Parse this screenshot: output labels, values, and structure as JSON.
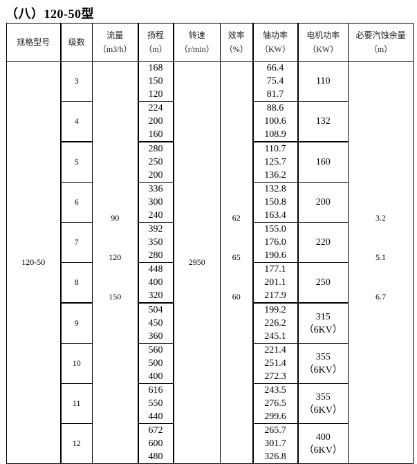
{
  "title": "（八）120-50型",
  "headers": [
    {
      "label": "规格型号",
      "unit": ""
    },
    {
      "label": "级数",
      "unit": ""
    },
    {
      "label": "流量",
      "unit": "（m3/h）"
    },
    {
      "label": "扬程",
      "unit": "（m）"
    },
    {
      "label": "转速",
      "unit": "（r/min）"
    },
    {
      "label": "效率",
      "unit": "（%）"
    },
    {
      "label": "轴功率",
      "unit": "（KW）"
    },
    {
      "label": "电机功率",
      "unit": "（KW）"
    },
    {
      "label": "必要汽蚀余量",
      "unit": "（m）"
    }
  ],
  "model": "120-50",
  "flow": [
    "90",
    "120",
    "150"
  ],
  "speed": "2950",
  "efficiency": [
    "62",
    "65",
    "60"
  ],
  "npsh": [
    "3.2",
    "5.1",
    "6.7"
  ],
  "rows": [
    {
      "stage": "3",
      "head": [
        "168",
        "150",
        "120"
      ],
      "shaft": [
        "66.4",
        "75.4",
        "81.7"
      ],
      "motor": "110",
      "motor_note": ""
    },
    {
      "stage": "4",
      "head": [
        "224",
        "200",
        "160"
      ],
      "shaft": [
        "88.6",
        "100.6",
        "108.9"
      ],
      "motor": "132",
      "motor_note": ""
    },
    {
      "stage": "5",
      "head": [
        "280",
        "250",
        "200"
      ],
      "shaft": [
        "110.7",
        "125.7",
        "136.2"
      ],
      "motor": "160",
      "motor_note": ""
    },
    {
      "stage": "6",
      "head": [
        "336",
        "300",
        "240"
      ],
      "shaft": [
        "132.8",
        "150.8",
        "163.4"
      ],
      "motor": "200",
      "motor_note": ""
    },
    {
      "stage": "7",
      "head": [
        "392",
        "350",
        "280"
      ],
      "shaft": [
        "155.0",
        "176.0",
        "190.6"
      ],
      "motor": "220",
      "motor_note": ""
    },
    {
      "stage": "8",
      "head": [
        "448",
        "400",
        "320"
      ],
      "shaft": [
        "177.1",
        "201.1",
        "217.9"
      ],
      "motor": "250",
      "motor_note": ""
    },
    {
      "stage": "9",
      "head": [
        "504",
        "450",
        "360"
      ],
      "shaft": [
        "199.2",
        "226.2",
        "245.1"
      ],
      "motor": "315",
      "motor_note": "（6KV）"
    },
    {
      "stage": "10",
      "head": [
        "560",
        "500",
        "400"
      ],
      "shaft": [
        "221.4",
        "251.4",
        "272.3"
      ],
      "motor": "355",
      "motor_note": "（6KV）"
    },
    {
      "stage": "11",
      "head": [
        "616",
        "550",
        "440"
      ],
      "shaft": [
        "243.5",
        "276.5",
        "299.6"
      ],
      "motor": "355",
      "motor_note": "（6KV）"
    },
    {
      "stage": "12",
      "head": [
        "672",
        "600",
        "480"
      ],
      "shaft": [
        "265.7",
        "301.7",
        "326.8"
      ],
      "motor": "400",
      "motor_note": "（6KV）"
    }
  ]
}
